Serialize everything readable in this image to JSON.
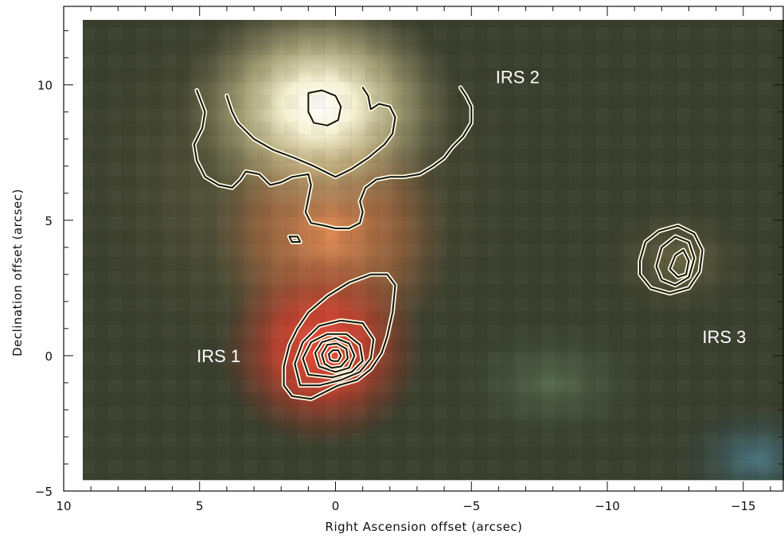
{
  "chart_data": {
    "type": "heatmap",
    "title": "",
    "xlabel": "Right Ascension offset (arcsec)",
    "ylabel": "Declination offset (arcsec)",
    "xlim": [
      10,
      -16.5
    ],
    "ylim": [
      -5,
      12.9
    ],
    "x_ticks": [
      10,
      5,
      0,
      -5,
      -10,
      -15
    ],
    "x_tick_labels": [
      "10",
      "5",
      "0",
      "−5",
      "−10",
      "−15"
    ],
    "y_ticks": [
      -5,
      0,
      5,
      10
    ],
    "y_tick_labels": [
      "−5",
      "0",
      "5",
      "10"
    ],
    "grid": false,
    "legend": "none",
    "image_extent": {
      "x": [
        9.3,
        -16.5
      ],
      "y": [
        -4.6,
        12.4
      ]
    },
    "colors": {
      "red_source": "#e8483a",
      "bright_source": "#fffde8",
      "background": "#3a3f2e",
      "contour_line": "#111111",
      "contour_halo": "#fffbe0"
    },
    "sources": [
      {
        "label": "IRS 1",
        "x": 0.0,
        "y": 0.0,
        "label_x": 4.3,
        "label_y": 0.0
      },
      {
        "label": "IRS 2",
        "x": -0.5,
        "y": 9.2,
        "label_x": -6.7,
        "label_y": 10.3
      },
      {
        "label": "IRS 3",
        "x": -12.6,
        "y": 3.4,
        "label_x": -14.3,
        "label_y": 0.7
      }
    ],
    "contours": [
      {
        "source": "IRS 1",
        "closed": true,
        "points": [
          [
            0.9,
            -1.6
          ],
          [
            1.6,
            -1.5
          ],
          [
            1.9,
            -1.1
          ],
          [
            1.9,
            -0.4
          ],
          [
            1.7,
            0.4
          ],
          [
            1.4,
            1.0
          ],
          [
            1.0,
            1.6
          ],
          [
            0.3,
            2.2
          ],
          [
            -0.5,
            2.7
          ],
          [
            -1.3,
            3.0
          ],
          [
            -1.9,
            3.0
          ],
          [
            -2.2,
            2.6
          ],
          [
            -2.1,
            1.6
          ],
          [
            -1.9,
            0.7
          ],
          [
            -1.7,
            0.1
          ],
          [
            -1.3,
            -0.5
          ],
          [
            -0.8,
            -0.9
          ],
          [
            -0.1,
            -1.1
          ],
          [
            0.5,
            -1.4
          ]
        ]
      },
      {
        "source": "IRS 1",
        "closed": true,
        "points": [
          [
            1.3,
            -1.1
          ],
          [
            1.5,
            -0.3
          ],
          [
            1.2,
            0.5
          ],
          [
            0.6,
            1.1
          ],
          [
            -0.2,
            1.3
          ],
          [
            -1.0,
            1.2
          ],
          [
            -1.4,
            0.6
          ],
          [
            -1.3,
            -0.1
          ],
          [
            -0.9,
            -0.6
          ],
          [
            -0.2,
            -0.9
          ],
          [
            0.6,
            -1.1
          ]
        ]
      },
      {
        "source": "IRS 1",
        "closed": true,
        "points": [
          [
            1.0,
            -0.7
          ],
          [
            1.2,
            -0.1
          ],
          [
            0.9,
            0.5
          ],
          [
            0.3,
            0.8
          ],
          [
            -0.4,
            0.8
          ],
          [
            -0.9,
            0.4
          ],
          [
            -1.0,
            -0.2
          ],
          [
            -0.6,
            -0.6
          ],
          [
            0.1,
            -0.8
          ]
        ]
      },
      {
        "source": "IRS 1",
        "closed": true,
        "points": [
          [
            0.6,
            -0.4
          ],
          [
            0.75,
            0.1
          ],
          [
            0.5,
            0.5
          ],
          [
            0.0,
            0.65
          ],
          [
            -0.5,
            0.45
          ],
          [
            -0.7,
            0.0
          ],
          [
            -0.5,
            -0.45
          ],
          [
            0.0,
            -0.6
          ]
        ]
      },
      {
        "source": "IRS 1",
        "closed": true,
        "points": [
          [
            0.4,
            -0.3
          ],
          [
            0.5,
            0.05
          ],
          [
            0.3,
            0.4
          ],
          [
            -0.05,
            0.45
          ],
          [
            -0.4,
            0.25
          ],
          [
            -0.45,
            -0.1
          ],
          [
            -0.2,
            -0.4
          ],
          [
            0.15,
            -0.45
          ]
        ]
      },
      {
        "source": "IRS 1",
        "closed": true,
        "points": [
          [
            0.2,
            -0.15
          ],
          [
            0.25,
            0.05
          ],
          [
            0.1,
            0.2
          ],
          [
            -0.1,
            0.2
          ],
          [
            -0.2,
            0.0
          ],
          [
            -0.1,
            -0.2
          ],
          [
            0.1,
            -0.2
          ]
        ]
      },
      {
        "source": "IRS 2",
        "closed": false,
        "points": [
          [
            5.1,
            9.8
          ],
          [
            4.8,
            9.0
          ],
          [
            4.9,
            8.4
          ],
          [
            5.2,
            7.8
          ],
          [
            5.1,
            7.2
          ],
          [
            4.8,
            6.6
          ],
          [
            4.3,
            6.3
          ],
          [
            3.8,
            6.2
          ],
          [
            3.5,
            6.5
          ],
          [
            3.3,
            6.8
          ],
          [
            2.8,
            6.7
          ],
          [
            2.4,
            6.3
          ],
          [
            2.0,
            6.4
          ],
          [
            1.6,
            6.6
          ],
          [
            1.0,
            6.7
          ],
          [
            0.9,
            6.3
          ],
          [
            1.0,
            5.8
          ],
          [
            1.1,
            5.3
          ],
          [
            0.9,
            4.9
          ],
          [
            0.4,
            4.8
          ],
          [
            0.0,
            4.7
          ],
          [
            -0.5,
            4.7
          ],
          [
            -0.9,
            4.9
          ],
          [
            -1.0,
            5.3
          ],
          [
            -0.9,
            5.7
          ],
          [
            -1.1,
            6.2
          ],
          [
            -1.5,
            6.5
          ],
          [
            -2.0,
            6.6
          ],
          [
            -2.5,
            6.6
          ],
          [
            -3.1,
            6.7
          ],
          [
            -3.6,
            7.0
          ],
          [
            -4.0,
            7.3
          ],
          [
            -4.3,
            7.7
          ],
          [
            -4.7,
            8.1
          ],
          [
            -5.0,
            8.6
          ],
          [
            -5.0,
            9.2
          ],
          [
            -4.8,
            9.6
          ],
          [
            -4.6,
            9.9
          ]
        ]
      },
      {
        "source": "IRS 2",
        "closed": false,
        "points": [
          [
            4.0,
            9.6
          ],
          [
            3.8,
            9.0
          ],
          [
            3.6,
            8.6
          ],
          [
            3.0,
            8.0
          ],
          [
            2.3,
            7.6
          ],
          [
            1.5,
            7.3
          ],
          [
            0.8,
            7.0
          ],
          [
            0.0,
            6.6
          ],
          [
            -0.6,
            6.9
          ],
          [
            -1.2,
            7.3
          ],
          [
            -1.8,
            7.8
          ],
          [
            -2.1,
            8.2
          ],
          [
            -2.2,
            8.8
          ],
          [
            -2.0,
            9.2
          ],
          [
            -1.6,
            9.3
          ],
          [
            -1.3,
            9.1
          ],
          [
            -1.2,
            9.6
          ],
          [
            -1.0,
            9.9
          ]
        ]
      },
      {
        "source": "IRS 2",
        "closed": true,
        "points": [
          [
            1.0,
            9.7
          ],
          [
            0.5,
            9.8
          ],
          [
            0.0,
            9.6
          ],
          [
            -0.2,
            9.2
          ],
          [
            -0.1,
            8.7
          ],
          [
            0.3,
            8.5
          ],
          [
            0.8,
            8.6
          ],
          [
            1.0,
            9.0
          ]
        ]
      },
      {
        "source": "IRS 2",
        "closed": true,
        "points": [
          [
            1.7,
            4.4
          ],
          [
            1.4,
            4.4
          ],
          [
            1.3,
            4.2
          ],
          [
            1.6,
            4.2
          ]
        ]
      },
      {
        "source": "IRS 3",
        "closed": true,
        "points": [
          [
            -11.2,
            3.5
          ],
          [
            -11.4,
            4.2
          ],
          [
            -11.9,
            4.6
          ],
          [
            -12.6,
            4.8
          ],
          [
            -13.2,
            4.5
          ],
          [
            -13.5,
            3.9
          ],
          [
            -13.4,
            3.1
          ],
          [
            -13.0,
            2.5
          ],
          [
            -12.3,
            2.3
          ],
          [
            -11.6,
            2.5
          ],
          [
            -11.2,
            3.0
          ]
        ]
      },
      {
        "source": "IRS 3",
        "closed": true,
        "points": [
          [
            -11.8,
            3.3
          ],
          [
            -12.0,
            4.0
          ],
          [
            -12.5,
            4.4
          ],
          [
            -13.0,
            4.2
          ],
          [
            -13.2,
            3.6
          ],
          [
            -13.0,
            2.9
          ],
          [
            -12.5,
            2.6
          ],
          [
            -12.0,
            2.8
          ]
        ]
      },
      {
        "source": "IRS 3",
        "closed": true,
        "points": [
          [
            -12.3,
            3.2
          ],
          [
            -12.5,
            3.7
          ],
          [
            -12.8,
            3.9
          ],
          [
            -13.0,
            3.5
          ],
          [
            -12.9,
            3.0
          ],
          [
            -12.6,
            2.9
          ]
        ]
      }
    ]
  }
}
